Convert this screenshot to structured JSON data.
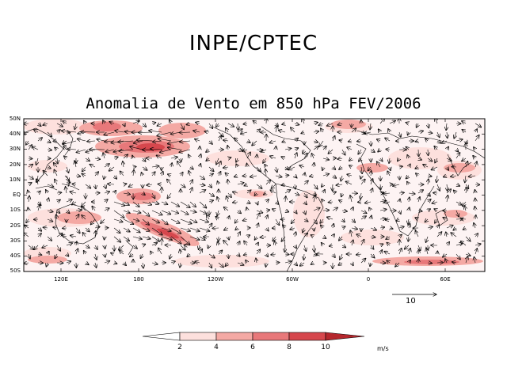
{
  "header": {
    "title": "INPE/CPTEC"
  },
  "map": {
    "title": "Anomalia de Vento em 850 hPa FEV/2006",
    "lat_labels": [
      "50N",
      "40N",
      "30N",
      "20N",
      "10N",
      "EQ",
      "10S",
      "20S",
      "30S",
      "40S",
      "50S"
    ],
    "lon_labels": [
      "120E",
      "180",
      "120W",
      "60W",
      "0",
      "60E"
    ],
    "reference_vector": {
      "magnitude": "10"
    },
    "colorbar": {
      "levels": [
        "2",
        "4",
        "6",
        "8",
        "10"
      ],
      "colors": [
        "#ffffff",
        "#fde0dd",
        "#f4a9a4",
        "#e8787a",
        "#d6474d",
        "#b5272d"
      ],
      "unit": "m/s"
    }
  }
}
